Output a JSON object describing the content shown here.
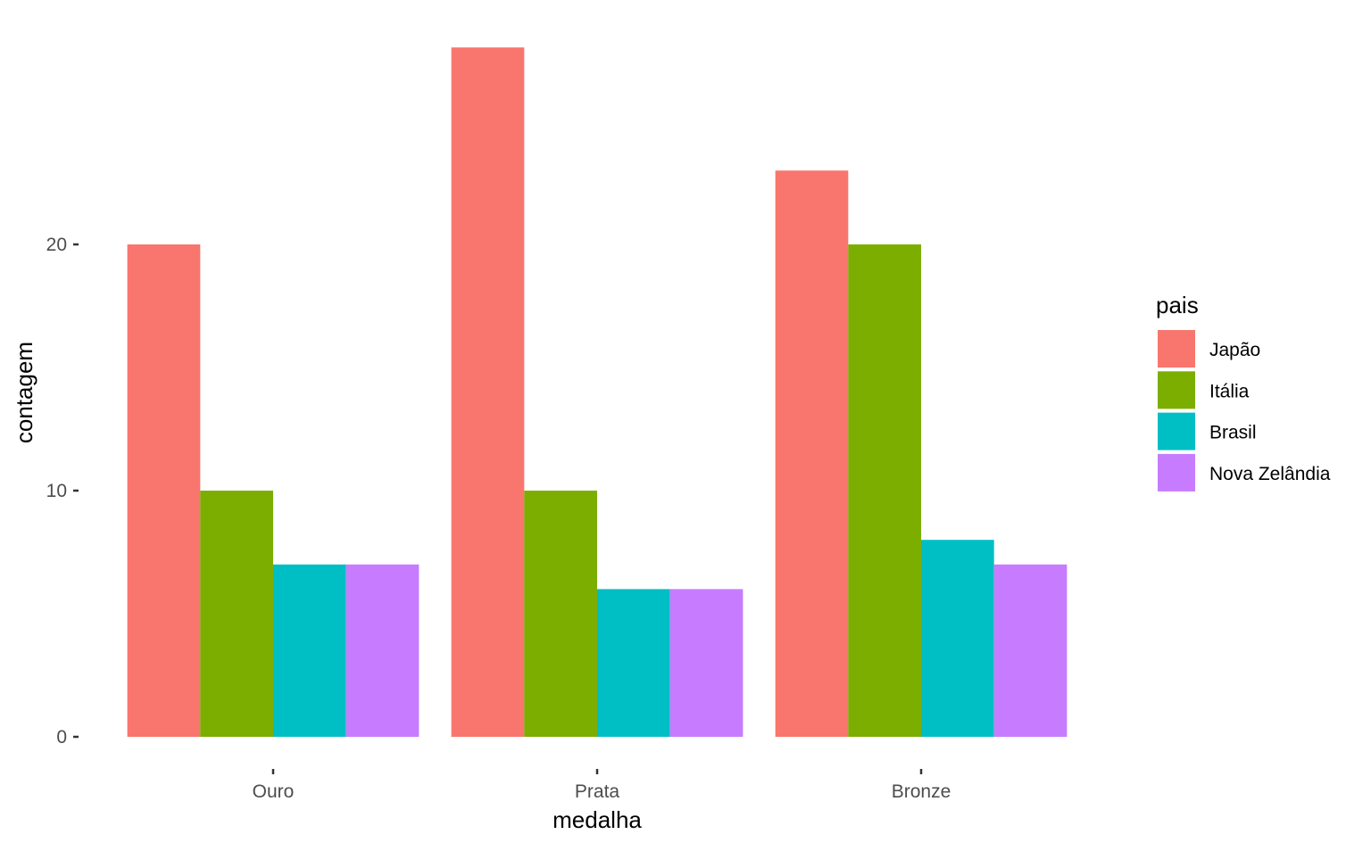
{
  "chart_data": {
    "type": "bar",
    "title": "",
    "xlabel": "medalha",
    "ylabel": "contagem",
    "categories": [
      "Ouro",
      "Prata",
      "Bronze"
    ],
    "series": [
      {
        "name": "Japão",
        "color": "#F8766D",
        "values": [
          20,
          28,
          23
        ]
      },
      {
        "name": "Itália",
        "color": "#7CAE00",
        "values": [
          10,
          10,
          20
        ]
      },
      {
        "name": "Brasil",
        "color": "#00BFC4",
        "values": [
          7,
          6,
          8
        ]
      },
      {
        "name": "Nova Zelândia",
        "color": "#C77CFF",
        "values": [
          7,
          6,
          7
        ]
      }
    ],
    "ylim": [
      0,
      28
    ],
    "yticks": [
      0,
      10,
      20
    ],
    "grid": false,
    "legend": {
      "title": "pais",
      "position": "right"
    }
  }
}
